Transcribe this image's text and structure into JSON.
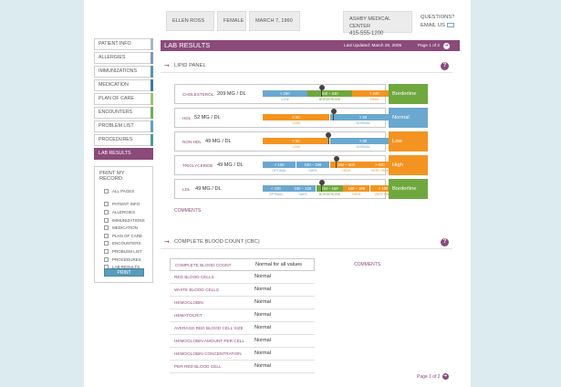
{
  "header": {
    "patient_name": "ELLEN ROSS",
    "gender": "FEMALE",
    "dob": "MARCH 7, 1960",
    "facility_name": "ASHBY MEDICAL CENTER",
    "facility_phone": "415-555-1200",
    "questions_label": "QUESTIONS?",
    "email_label": "EMAIL US"
  },
  "sidebar": {
    "items": [
      {
        "label": "PATIENT INFO",
        "color": "#a7b8c8"
      },
      {
        "label": "ALLERGIES",
        "color": "#7a9bbf"
      },
      {
        "label": "IMMUNIZATIONS",
        "color": "#5d8fb5"
      },
      {
        "label": "MEDICATION",
        "color": "#3a7aa8"
      },
      {
        "label": "PLAN OF CARE",
        "color": "#9cc36c"
      },
      {
        "label": "ENCOUNTERS",
        "color": "#6fae5a"
      },
      {
        "label": "PROBLEM LIST",
        "color": "#5f9fc6"
      },
      {
        "label": "PROCEDURES",
        "color": "#4e9e8f"
      },
      {
        "label": "LAB RESULTS",
        "color": "#8b4a7a"
      }
    ]
  },
  "print": {
    "title": "PRINT MY RECORD:",
    "all_pages": "ALL PAGES",
    "options": [
      "PATIENT INFO",
      "ALLERGIES",
      "IMMUNIZATIONS",
      "MEDICATION",
      "PLAN OF CARE",
      "ENCOUNTERS",
      "PROBLEM LIST",
      "PROCEDURES",
      "LAB RESULTS"
    ],
    "button": "PRINT"
  },
  "lab": {
    "title": "LAB RESULTS",
    "updated": "Last Updated: March 28, 2005",
    "page": "Page 1 of 2"
  },
  "lipid": {
    "title": "LIPID PANEL",
    "rows": [
      {
        "name": "CHOLESTEROL",
        "value": "209 MG / DL",
        "status": "Borderline",
        "status_color": "#6fa83e"
      },
      {
        "name": "HDL",
        "value": "52 MG / DL",
        "status": "Normal",
        "status_color": "#6aa8cf"
      },
      {
        "name": "NON-HDL",
        "value": "49 MG / DL",
        "status": "Low",
        "status_color": "#f39420"
      },
      {
        "name": "TRIGLYCERIDE",
        "value": "49 MG / DL",
        "status": "High",
        "status_color": "#f39420"
      },
      {
        "name": "LDL",
        "value": "49 MG / DL",
        "status": "Borderline",
        "status_color": "#6fa83e"
      }
    ],
    "scales": {
      "cholesterol": [
        {
          "t": "< 200",
          "l": "LOW"
        },
        {
          "t": "200 – 240",
          "l": "BORDERLINE"
        },
        {
          "t": "> 240",
          "l": "HIGH"
        }
      ],
      "hdl": [
        {
          "t": "< 50",
          "l": "LOW"
        },
        {
          "t": "> 50",
          "l": "NORMAL"
        }
      ],
      "nonhdl": [
        {
          "t": "< 50",
          "l": "LOW"
        },
        {
          "t": "> 50",
          "l": "NORMAL"
        }
      ],
      "trig": [
        {
          "t": "< 150",
          "l": "OPTIMAL"
        },
        {
          "t": "150 – 199",
          "l": "SAFE"
        },
        {
          "t": "200 – 500",
          "l": "HIGH"
        },
        {
          "t": "> 500",
          "l": "VERY HIGH"
        }
      ],
      "ldl": [
        {
          "t": "< 100",
          "l": "OPTIMAL"
        },
        {
          "t": "100 – 129",
          "l": "SAFE"
        },
        {
          "t": "130 – 159",
          "l": "BORDERLINE"
        },
        {
          "t": "160 – 189",
          "l": "HIGH"
        },
        {
          "t": "> 190",
          "l": "VERY HIGH"
        }
      ]
    },
    "comments": "COMMENTS"
  },
  "cbc": {
    "title": "COMPLETE BLOOD COUNT (CBC)",
    "rows": [
      {
        "name": "COMPLETE BLOOD COUNT",
        "value": "Normal for all values"
      },
      {
        "name": "RED BLOOD CELLS",
        "value": "Normal"
      },
      {
        "name": "WHITE BLOOD CELLS",
        "value": "Normal"
      },
      {
        "name": "HEMOGLOBIN",
        "value": "Normal"
      },
      {
        "name": "HEMATOCRIT",
        "value": "Normal"
      },
      {
        "name": "AVERAGE RED BLOOD CELL SIZE",
        "value": "Normal"
      },
      {
        "name": "HEMOGLOBIN AMOUNT PER CELL",
        "value": "Normal"
      },
      {
        "name": "HEMOGLOBIN CONCENTRATION",
        "value": "Normal"
      },
      {
        "name": "PER RED BLOOD CELL",
        "value": "Normal"
      }
    ],
    "comments": "COMMENTS"
  },
  "footer": {
    "page": "Page 1 of 2"
  }
}
